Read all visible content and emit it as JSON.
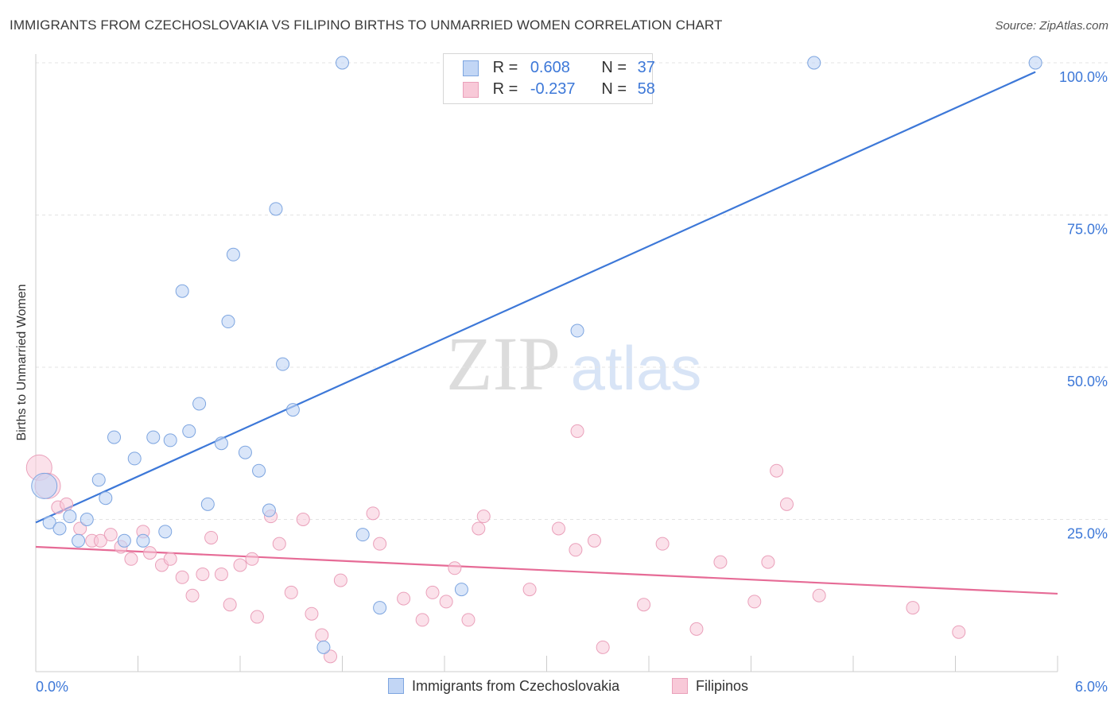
{
  "title": "IMMIGRANTS FROM CZECHOSLOVAKIA VS FILIPINO BIRTHS TO UNMARRIED WOMEN CORRELATION CHART",
  "source": "Source: ZipAtlas.com",
  "watermark": {
    "zip": "ZIP",
    "atlas": "atlas"
  },
  "colors": {
    "blue": "#3d78d8",
    "blue_fill": "#c2d6f5",
    "pink": "#e66b96",
    "pink_fill": "#f8c9d8",
    "grid": "#e3e3e3"
  },
  "legend": {
    "r_label": "R =",
    "n_label": "N =",
    "rows": [
      {
        "r": "0.608",
        "n": "37"
      },
      {
        "r": "-0.237",
        "n": "58"
      }
    ]
  },
  "chart_data": {
    "type": "scatter",
    "title": "IMMIGRANTS FROM CZECHOSLOVAKIA VS FILIPINO BIRTHS TO UNMARRIED WOMEN CORRELATION CHART",
    "xlabel": "",
    "ylabel": "Births to Unmarried Women",
    "xlim": [
      0,
      6
    ],
    "ylim": [
      0,
      100
    ],
    "x_tick_labels": [
      "0.0%",
      "6.0%"
    ],
    "y_ticks": [
      25,
      50,
      75,
      100
    ],
    "y_tick_labels": [
      "25.0%",
      "50.0%",
      "75.0%",
      "100.0%"
    ],
    "grid": true,
    "legend_position": "bottom",
    "series": [
      {
        "name": "Immigrants from Czechoslovakia",
        "color": "#3d78d8",
        "trend": {
          "x": [
            0.0,
            5.87
          ],
          "y": [
            24.5,
            98.5
          ]
        },
        "points": [
          {
            "x": 0.05,
            "y": 30.5,
            "big": true
          },
          {
            "x": 0.08,
            "y": 24.5
          },
          {
            "x": 0.14,
            "y": 23.5
          },
          {
            "x": 0.2,
            "y": 25.5
          },
          {
            "x": 0.25,
            "y": 21.5
          },
          {
            "x": 0.3,
            "y": 25.0
          },
          {
            "x": 0.37,
            "y": 31.5
          },
          {
            "x": 0.41,
            "y": 28.5
          },
          {
            "x": 0.46,
            "y": 38.5
          },
          {
            "x": 0.52,
            "y": 21.5
          },
          {
            "x": 0.58,
            "y": 35.0
          },
          {
            "x": 0.63,
            "y": 21.5
          },
          {
            "x": 0.69,
            "y": 38.5
          },
          {
            "x": 0.76,
            "y": 23.0
          },
          {
            "x": 0.79,
            "y": 38.0
          },
          {
            "x": 0.86,
            "y": 62.5
          },
          {
            "x": 0.9,
            "y": 39.5
          },
          {
            "x": 0.96,
            "y": 44.0
          },
          {
            "x": 1.01,
            "y": 27.5
          },
          {
            "x": 1.09,
            "y": 37.5
          },
          {
            "x": 1.13,
            "y": 57.5
          },
          {
            "x": 1.16,
            "y": 68.5
          },
          {
            "x": 1.23,
            "y": 36.0
          },
          {
            "x": 1.31,
            "y": 33.0
          },
          {
            "x": 1.37,
            "y": 26.5
          },
          {
            "x": 1.41,
            "y": 76.0
          },
          {
            "x": 1.45,
            "y": 50.5
          },
          {
            "x": 1.51,
            "y": 43.0
          },
          {
            "x": 1.69,
            "y": 4.0
          },
          {
            "x": 1.8,
            "y": 100.0
          },
          {
            "x": 1.92,
            "y": 22.5
          },
          {
            "x": 2.02,
            "y": 10.5
          },
          {
            "x": 2.5,
            "y": 13.5
          },
          {
            "x": 2.68,
            "y": 100.0
          },
          {
            "x": 3.18,
            "y": 56.0
          },
          {
            "x": 4.57,
            "y": 100.0
          },
          {
            "x": 5.87,
            "y": 100.0
          }
        ]
      },
      {
        "name": "Filipinos",
        "color": "#e66b96",
        "trend": {
          "x": [
            0.0,
            6.0
          ],
          "y": [
            20.5,
            12.8
          ]
        },
        "points": [
          {
            "x": 0.02,
            "y": 33.5,
            "big": true
          },
          {
            "x": 0.07,
            "y": 30.5,
            "big": true
          },
          {
            "x": 0.13,
            "y": 27.0
          },
          {
            "x": 0.18,
            "y": 27.5
          },
          {
            "x": 0.26,
            "y": 23.5
          },
          {
            "x": 0.33,
            "y": 21.5
          },
          {
            "x": 0.38,
            "y": 21.5
          },
          {
            "x": 0.44,
            "y": 22.5
          },
          {
            "x": 0.5,
            "y": 20.5
          },
          {
            "x": 0.56,
            "y": 18.5
          },
          {
            "x": 0.63,
            "y": 23.0
          },
          {
            "x": 0.67,
            "y": 19.5
          },
          {
            "x": 0.74,
            "y": 17.5
          },
          {
            "x": 0.79,
            "y": 18.5
          },
          {
            "x": 0.86,
            "y": 15.5
          },
          {
            "x": 0.92,
            "y": 12.5
          },
          {
            "x": 0.98,
            "y": 16.0
          },
          {
            "x": 1.03,
            "y": 22.0
          },
          {
            "x": 1.09,
            "y": 16.0
          },
          {
            "x": 1.14,
            "y": 11.0
          },
          {
            "x": 1.2,
            "y": 17.5
          },
          {
            "x": 1.27,
            "y": 18.5
          },
          {
            "x": 1.3,
            "y": 9.0
          },
          {
            "x": 1.38,
            "y": 25.5
          },
          {
            "x": 1.43,
            "y": 21.0
          },
          {
            "x": 1.5,
            "y": 13.0
          },
          {
            "x": 1.57,
            "y": 25.0
          },
          {
            "x": 1.62,
            "y": 9.5
          },
          {
            "x": 1.68,
            "y": 6.0
          },
          {
            "x": 1.73,
            "y": 2.5
          },
          {
            "x": 1.79,
            "y": 15.0
          },
          {
            "x": 1.98,
            "y": 26.0
          },
          {
            "x": 2.02,
            "y": 21.0
          },
          {
            "x": 2.16,
            "y": 12.0
          },
          {
            "x": 2.27,
            "y": 8.5
          },
          {
            "x": 2.33,
            "y": 13.0
          },
          {
            "x": 2.41,
            "y": 11.5
          },
          {
            "x": 2.46,
            "y": 17.0
          },
          {
            "x": 2.54,
            "y": 8.5
          },
          {
            "x": 2.6,
            "y": 23.5
          },
          {
            "x": 2.63,
            "y": 25.5
          },
          {
            "x": 2.9,
            "y": 13.5
          },
          {
            "x": 3.07,
            "y": 23.5
          },
          {
            "x": 3.17,
            "y": 20.0
          },
          {
            "x": 3.18,
            "y": 39.5
          },
          {
            "x": 3.28,
            "y": 21.5
          },
          {
            "x": 3.33,
            "y": 4.0
          },
          {
            "x": 3.57,
            "y": 11.0
          },
          {
            "x": 3.68,
            "y": 21.0
          },
          {
            "x": 3.88,
            "y": 7.0
          },
          {
            "x": 4.02,
            "y": 18.0
          },
          {
            "x": 4.22,
            "y": 11.5
          },
          {
            "x": 4.3,
            "y": 18.0
          },
          {
            "x": 4.35,
            "y": 33.0
          },
          {
            "x": 4.41,
            "y": 27.5
          },
          {
            "x": 4.6,
            "y": 12.5
          },
          {
            "x": 5.15,
            "y": 10.5
          },
          {
            "x": 5.42,
            "y": 6.5
          }
        ]
      }
    ]
  }
}
